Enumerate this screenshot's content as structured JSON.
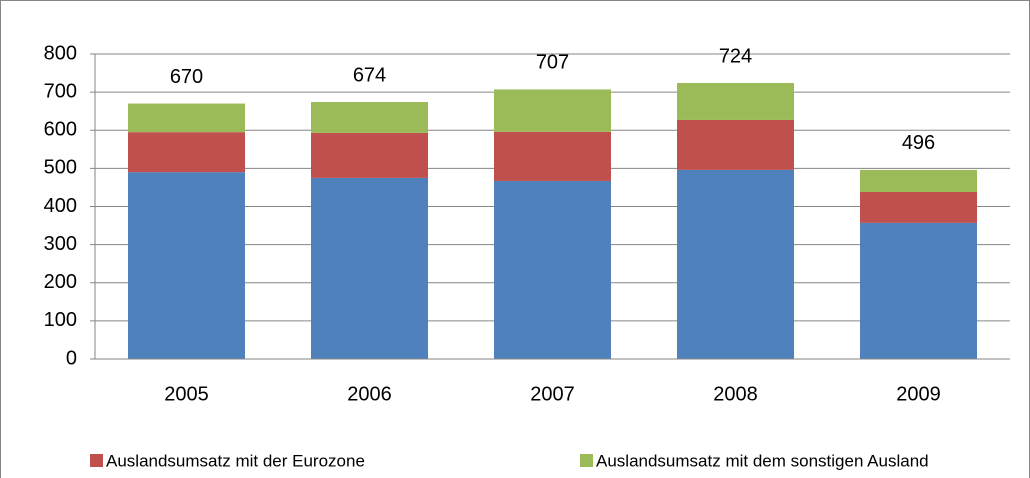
{
  "chart_data": {
    "type": "stacked_bar",
    "categories": [
      "2005",
      "2006",
      "2007",
      "2008",
      "2009"
    ],
    "series": [
      {
        "color": "#4f81bd",
        "values": [
          490,
          475,
          467,
          496,
          357
        ]
      },
      {
        "name": "Auslandsumsatz mit der Eurozone",
        "color": "#c0504d",
        "values": [
          105,
          118,
          129,
          131,
          81
        ]
      },
      {
        "name": "Auslandsumsatz mit dem sonstigen Ausland",
        "color": "#9bbb59",
        "values": [
          75,
          81,
          111,
          97,
          58
        ]
      }
    ],
    "totals": [
      670,
      674,
      707,
      724,
      496
    ],
    "ylim": [
      0,
      800
    ],
    "yticks": [
      0,
      100,
      200,
      300,
      400,
      500,
      600,
      700,
      800
    ],
    "grid": true
  }
}
